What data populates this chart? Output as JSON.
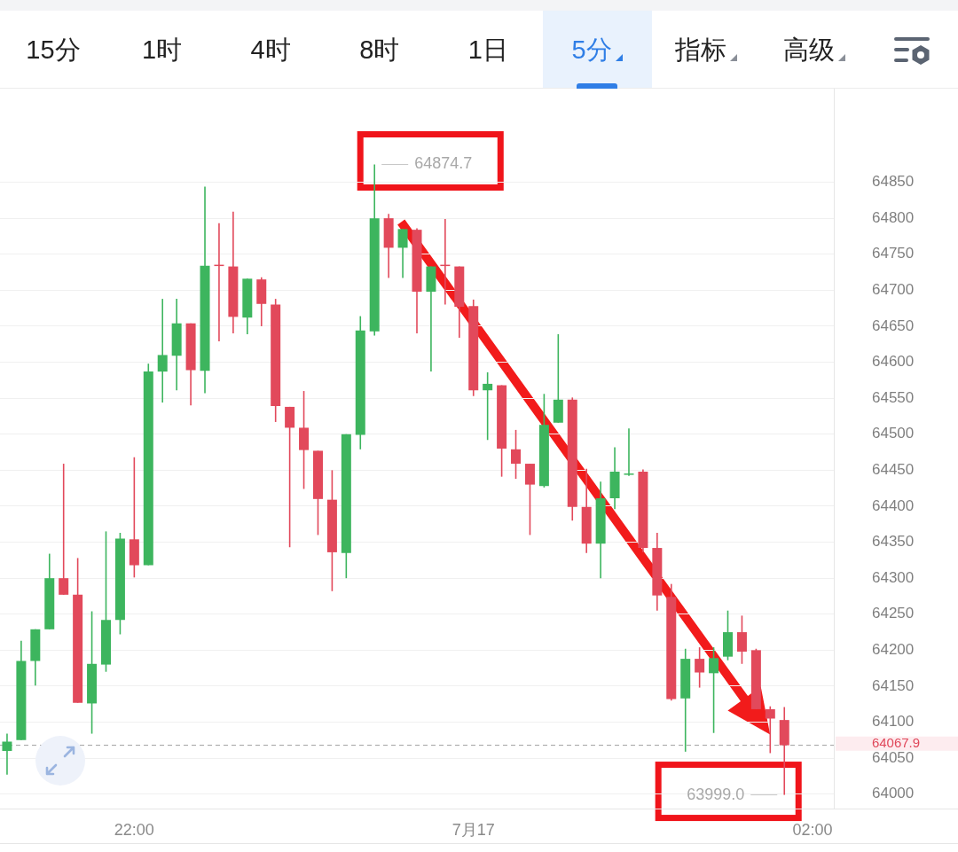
{
  "chart_data": {
    "type": "candlestick",
    "categories": [
      null,
      null,
      null,
      null,
      null,
      null,
      null,
      null,
      null,
      "22:00",
      null,
      null,
      null,
      null,
      null,
      null,
      null,
      null,
      null,
      null,
      null,
      null,
      null,
      null,
      null,
      null,
      null,
      null,
      null,
      null,
      null,
      null,
      null,
      "7月17",
      null,
      null,
      null,
      null,
      null,
      null,
      null,
      null,
      null,
      null,
      null,
      null,
      null,
      null,
      null,
      null,
      null,
      null,
      null,
      null,
      null,
      null,
      null,
      "02:00",
      null
    ],
    "ohlc": [
      [
        64060,
        64084,
        64027,
        64073
      ],
      [
        64075,
        64213,
        64075,
        64185
      ],
      [
        64185,
        64229,
        64151,
        64229
      ],
      [
        64229,
        64334,
        64229,
        64300
      ],
      [
        64300,
        64459,
        64277,
        64277
      ],
      [
        64277,
        64328,
        64127,
        64127
      ],
      [
        64126,
        64254,
        64084,
        64181
      ],
      [
        64180,
        64365,
        64170,
        64242
      ],
      [
        64242,
        64363,
        64222,
        64355
      ],
      [
        64354,
        64468,
        64301,
        64318
      ],
      [
        64318,
        64598,
        64318,
        64587
      ],
      [
        64587,
        64688,
        64544,
        64610
      ],
      [
        64609,
        64688,
        64561,
        64654
      ],
      [
        64654,
        64654,
        64540,
        64589
      ],
      [
        64588,
        64844,
        64557,
        64734
      ],
      [
        64735,
        64793,
        64629,
        64734
      ],
      [
        64733,
        64809,
        64640,
        64663
      ],
      [
        64662,
        64716,
        64639,
        64716
      ],
      [
        64715,
        64718,
        64650,
        64681
      ],
      [
        64680,
        64688,
        64517,
        64539
      ],
      [
        64538,
        64538,
        64343,
        64509
      ],
      [
        64509,
        64560,
        64424,
        64478
      ],
      [
        64477,
        64477,
        64360,
        64410
      ],
      [
        64409,
        64450,
        64282,
        64336
      ],
      [
        64335,
        64500,
        64300,
        64500
      ],
      [
        64499,
        64664,
        64479,
        64644
      ],
      [
        64643,
        64874.7,
        64637,
        64800
      ],
      [
        64800,
        64806,
        64717,
        64759
      ],
      [
        64759,
        64785,
        64717,
        64785
      ],
      [
        64784,
        64786,
        64640,
        64698
      ],
      [
        64698,
        64733,
        64587,
        64733
      ],
      [
        64735,
        64799,
        64680,
        64734
      ],
      [
        64733,
        64733,
        64634,
        64677
      ],
      [
        64678,
        64687,
        64553,
        64561
      ],
      [
        64561,
        64586,
        64492,
        64570
      ],
      [
        64568,
        64568,
        64441,
        64480
      ],
      [
        64479,
        64506,
        64438,
        64459
      ],
      [
        64459,
        64459,
        64360,
        64430
      ],
      [
        64428,
        64556,
        64426,
        64513
      ],
      [
        64516,
        64639,
        64516,
        64548
      ],
      [
        64548,
        64551,
        64380,
        64399
      ],
      [
        64399,
        64452,
        64335,
        64348
      ],
      [
        64348,
        64434,
        64300,
        64411
      ],
      [
        64411,
        64482,
        64396,
        64448
      ],
      [
        64444,
        64508,
        64442,
        64445
      ],
      [
        64448,
        64451,
        64336,
        64342
      ],
      [
        64342,
        64363,
        64255,
        64276
      ],
      [
        64274,
        64292,
        64130,
        64132
      ],
      [
        64133,
        64202,
        64059,
        64188
      ],
      [
        64188,
        64204,
        64148,
        64169
      ],
      [
        64168,
        64204,
        64085,
        64189
      ],
      [
        64191,
        64255,
        64186,
        64225
      ],
      [
        64225,
        64248,
        64181,
        64198
      ],
      [
        64200,
        64202,
        64118,
        64118
      ],
      [
        64118,
        64122,
        64057,
        64105
      ],
      [
        64103,
        64121,
        63999.0,
        64067.9
      ],
      null,
      null,
      null
    ],
    "colors": [
      "#3db55e",
      "#3db55e",
      "#3db55e",
      "#3db55e",
      "#e2495b",
      "#e2495b",
      "#3db55e",
      "#3db55e",
      "#3db55e",
      "#e2495b",
      "#3db55e",
      "#3db55e",
      "#3db55e",
      "#e2495b",
      "#3db55e",
      "#e2495b",
      "#e2495b",
      "#3db55e",
      "#e2495b",
      "#e2495b",
      "#e2495b",
      "#e2495b",
      "#e2495b",
      "#e2495b",
      "#3db55e",
      "#3db55e",
      "#3db55e",
      "#e2495b",
      "#3db55e",
      "#e2495b",
      "#3db55e",
      "#e2495b",
      "#e2495b",
      "#e2495b",
      "#3db55e",
      "#e2495b",
      "#e2495b",
      "#e2495b",
      "#3db55e",
      "#3db55e",
      "#e2495b",
      "#e2495b",
      "#3db55e",
      "#3db55e",
      "#3db55e",
      "#e2495b",
      "#e2495b",
      "#e2495b",
      "#3db55e",
      "#e2495b",
      "#3db55e",
      "#3db55e",
      "#e2495b",
      "#e2495b",
      "#e2495b",
      "#e2495b",
      null,
      null,
      null
    ],
    "ylim": [
      63980,
      64980
    ],
    "yticks": [
      64000,
      64050,
      64100,
      64150,
      64200,
      64250,
      64300,
      64350,
      64400,
      64450,
      64500,
      64550,
      64600,
      64650,
      64700,
      64750,
      64800,
      64850
    ],
    "grid": "y",
    "ref_lines": [
      {
        "axis": "y",
        "value": 64067.9,
        "label": "64067.9",
        "color": "#9e9e9e",
        "line_style": "dashed"
      }
    ],
    "annotations": [
      "15分",
      "1时",
      "4时",
      "8时",
      "1日",
      "5分",
      "指标",
      "高级",
      "64874.7",
      "63999.0"
    ]
  }
}
